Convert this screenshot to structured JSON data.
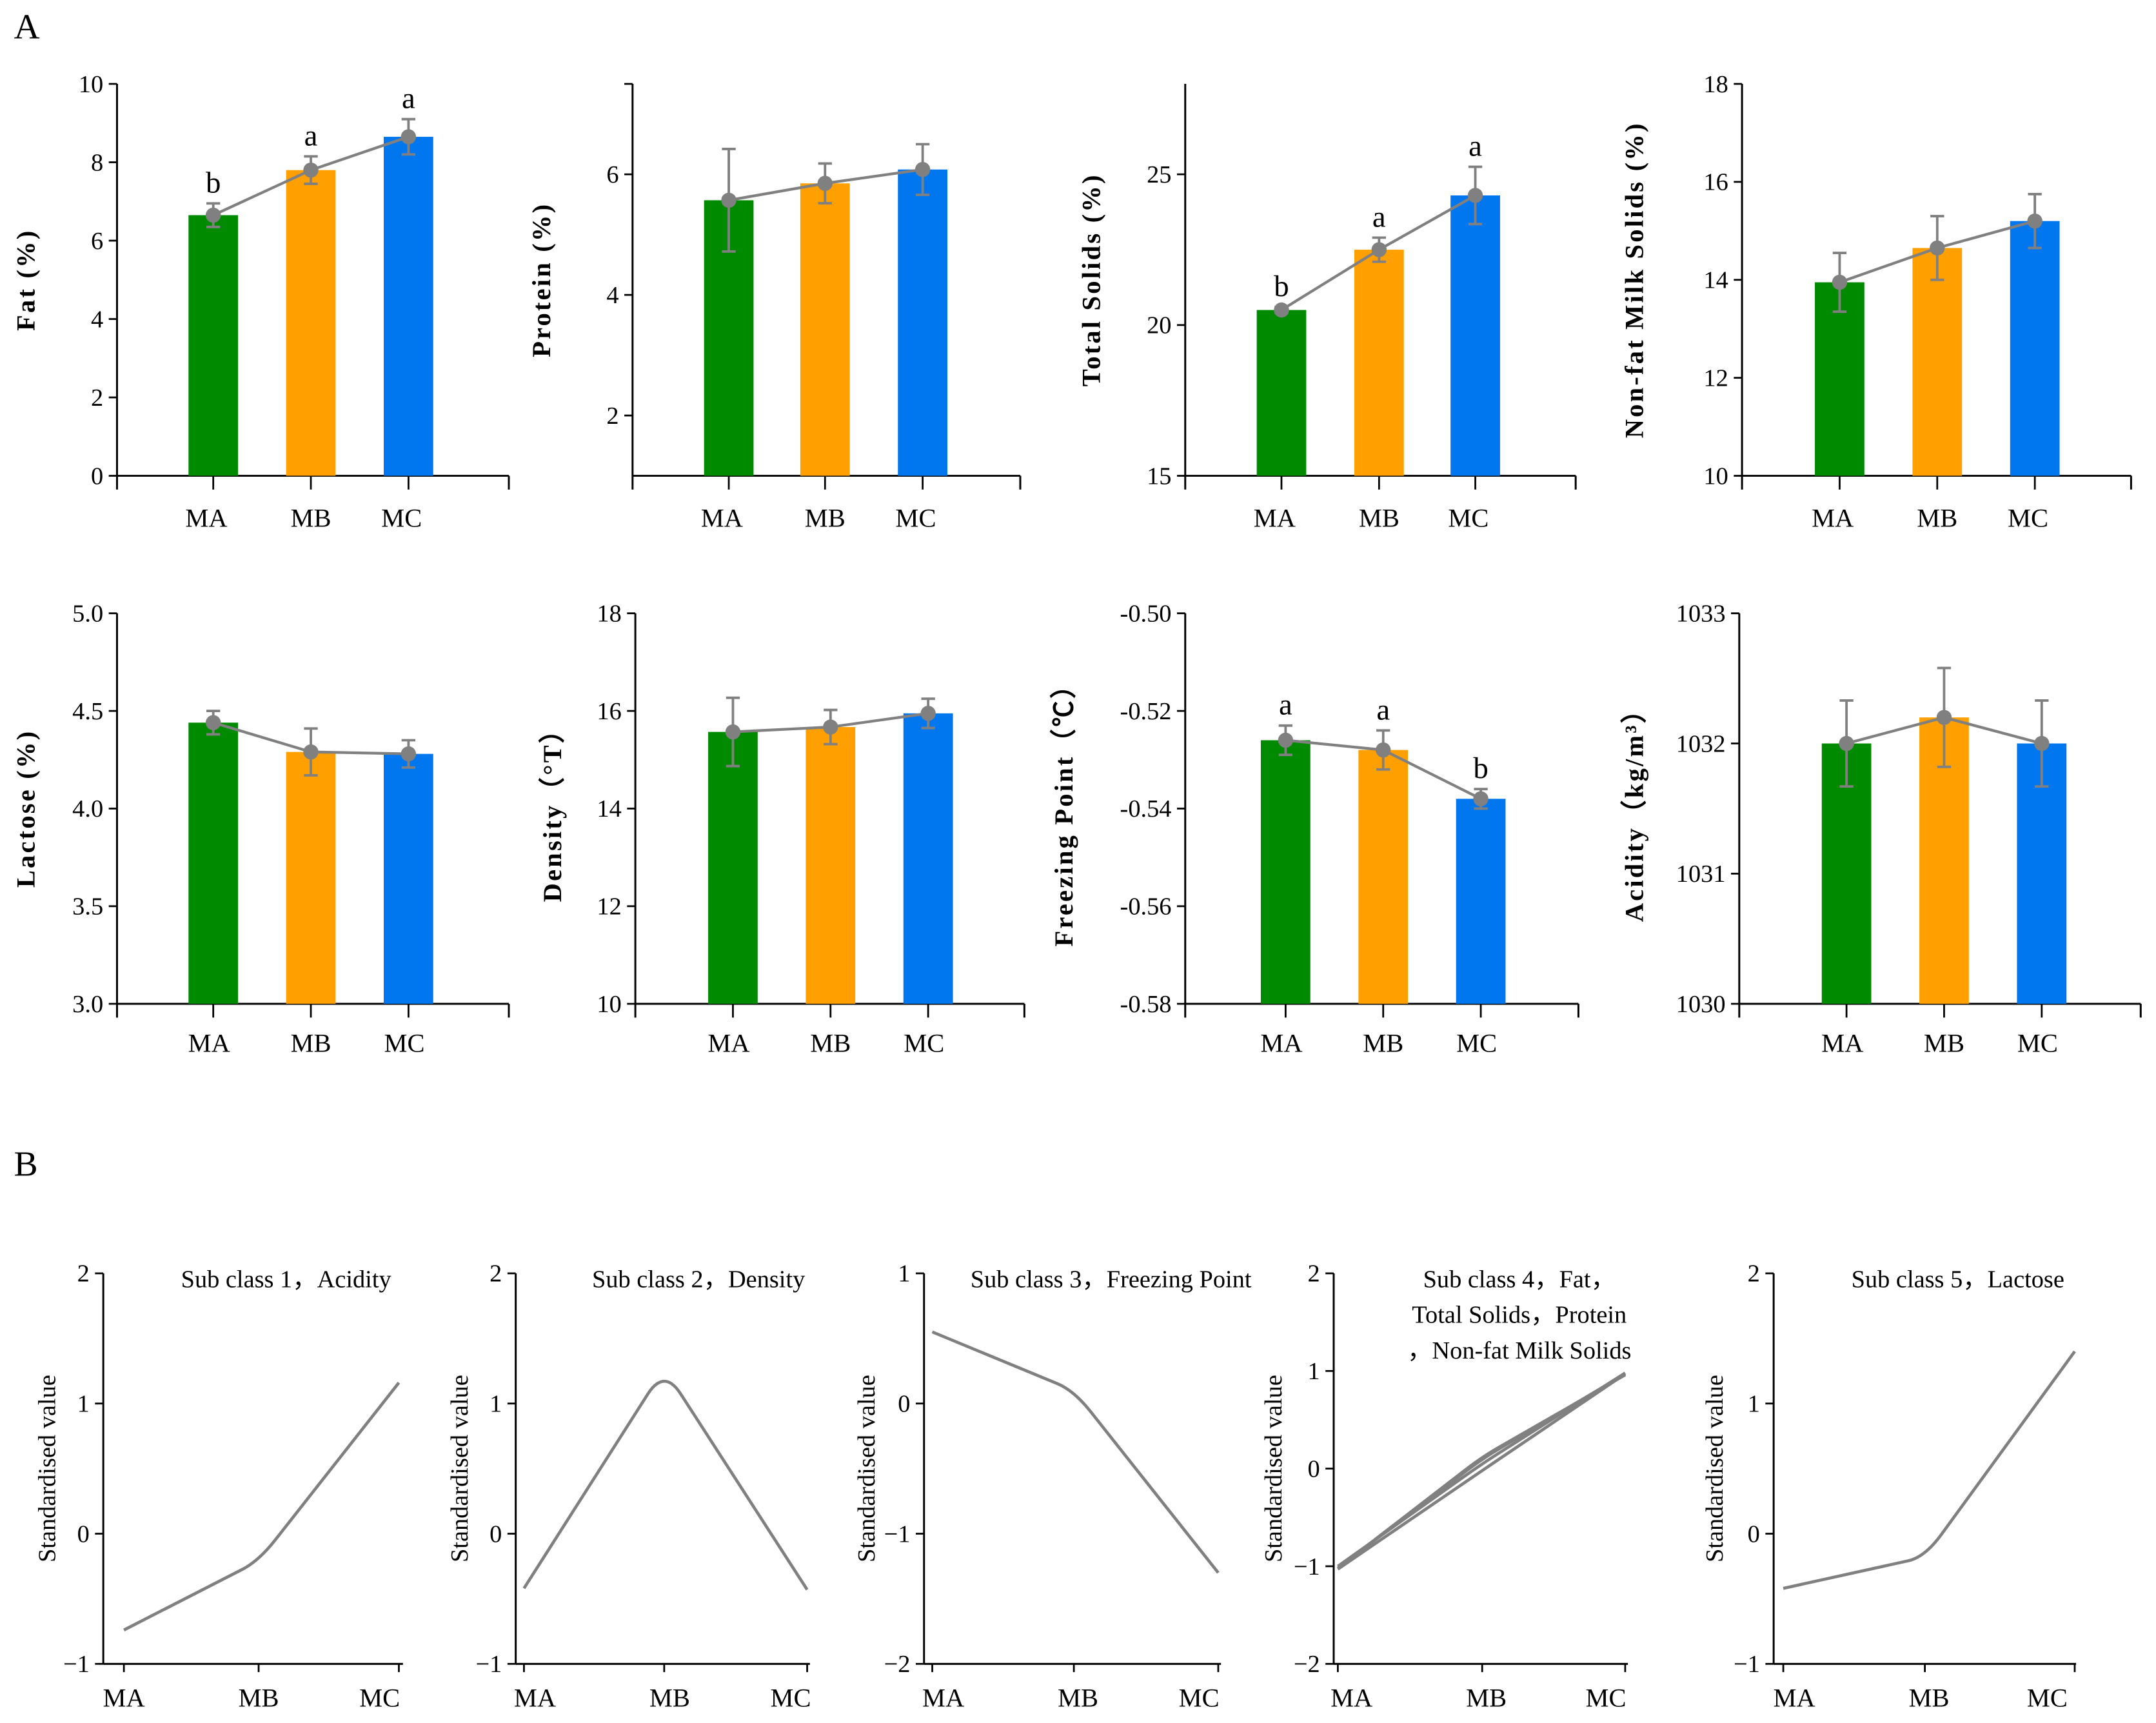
{
  "panel_labels": {
    "a": "A",
    "b": "B"
  },
  "colors": {
    "MA": "#008a00",
    "MB": "#ff9f00",
    "MC": "#0077ee",
    "line": "#808080",
    "axis": "#000000"
  },
  "chart_data": [
    {
      "type": "bar",
      "ylabel": "Fat (%)",
      "categories": [
        "MA",
        "MB",
        "MC"
      ],
      "values": [
        6.65,
        7.8,
        8.65
      ],
      "errors": [
        0.3,
        0.35,
        0.45
      ],
      "letters": [
        "b",
        "a",
        "a"
      ],
      "ylim": [
        0,
        10
      ],
      "yticks": [
        "0",
        "2",
        "4",
        "6",
        "8",
        "10"
      ]
    },
    {
      "type": "bar",
      "ylabel": "Protein (%)",
      "categories": [
        "MA",
        "MB",
        "MC"
      ],
      "values": [
        5.57,
        5.85,
        6.08
      ],
      "errors": [
        0.85,
        0.33,
        0.42
      ],
      "letters": [
        "",
        "",
        ""
      ],
      "ylim": [
        1,
        7.5
      ],
      "yticks": [
        "2",
        "4",
        "6"
      ]
    },
    {
      "type": "bar",
      "ylabel": "Total Solids (%)",
      "categories": [
        "MA",
        "MB",
        "MC"
      ],
      "values": [
        20.5,
        22.5,
        24.3
      ],
      "errors": [
        0.1,
        0.4,
        0.95
      ],
      "letters": [
        "b",
        "a",
        "a"
      ],
      "ylim": [
        15,
        28
      ],
      "yticks": [
        "15",
        "20",
        "25"
      ]
    },
    {
      "type": "bar",
      "ylabel": "Non-fat Milk Solids (%)",
      "categories": [
        "MA",
        "MB",
        "MC"
      ],
      "values": [
        13.95,
        14.65,
        15.2
      ],
      "errors": [
        0.6,
        0.65,
        0.55
      ],
      "letters": [
        "",
        "",
        ""
      ],
      "ylim": [
        10,
        18
      ],
      "yticks": [
        "10",
        "12",
        "14",
        "16",
        "18"
      ]
    },
    {
      "type": "bar",
      "ylabel": "Lactose (%)",
      "categories": [
        "MA",
        "MB",
        "MC"
      ],
      "values": [
        4.44,
        4.29,
        4.28
      ],
      "errors": [
        0.06,
        0.12,
        0.07
      ],
      "letters": [
        "",
        "",
        ""
      ],
      "ylim": [
        3,
        5
      ],
      "yticks": [
        "3.0",
        "3.5",
        "4.0",
        "4.5",
        "5.0"
      ]
    },
    {
      "type": "bar",
      "ylabel": "Density（°T）",
      "categories": [
        "MA",
        "MB",
        "MC"
      ],
      "values": [
        15.57,
        15.67,
        15.95
      ],
      "errors": [
        0.7,
        0.35,
        0.3
      ],
      "letters": [
        "",
        "",
        ""
      ],
      "ylim": [
        10,
        18
      ],
      "yticks": [
        "10",
        "12",
        "14",
        "16",
        "18"
      ]
    },
    {
      "type": "bar",
      "ylabel": "Freezing Point（℃）",
      "categories": [
        "MA",
        "MB",
        "MC"
      ],
      "values": [
        -0.526,
        -0.528,
        -0.538
      ],
      "errors": [
        0.003,
        0.004,
        0.002
      ],
      "letters": [
        "a",
        "a",
        "b"
      ],
      "ylim": [
        -0.58,
        -0.5
      ],
      "yticks": [
        "-0.58",
        "-0.56",
        "-0.54",
        "-0.52",
        "-0.50"
      ]
    },
    {
      "type": "bar",
      "ylabel": "Acidity（kg/m³）",
      "categories": [
        "MA",
        "MB",
        "MC"
      ],
      "values": [
        1032.0,
        1032.2,
        1032.0
      ],
      "errors": [
        0.33,
        0.38,
        0.33
      ],
      "letters": [
        "",
        "",
        ""
      ],
      "ylim": [
        1030,
        1033
      ],
      "yticks": [
        "1030",
        "1031",
        "1032",
        "1033"
      ]
    },
    {
      "type": "line",
      "ylabel": "Standardised value",
      "title": [
        "Sub class 1，Acidity"
      ],
      "categories": [
        "MA",
        "MB",
        "MC"
      ],
      "series": [
        {
          "name": "Acidity",
          "values": [
            -0.74,
            -0.21,
            1.16
          ]
        }
      ],
      "ylim": [
        -1,
        2
      ],
      "yticks": [
        "−1",
        "0",
        "1",
        "2"
      ]
    },
    {
      "type": "line",
      "ylabel": "Standardised value",
      "title": [
        "Sub class 2，Density"
      ],
      "categories": [
        "MA",
        "MB",
        "MC"
      ],
      "series": [
        {
          "name": "Density",
          "values": [
            -0.42,
            1.27,
            -0.43
          ]
        }
      ],
      "ylim": [
        -1,
        2
      ],
      "yticks": [
        "−1",
        "0",
        "1",
        "2"
      ]
    },
    {
      "type": "line",
      "ylabel": "Standardised value",
      "title": [
        "Sub class 3，Freezing Point"
      ],
      "categories": [
        "MA",
        "MB",
        "MC"
      ],
      "series": [
        {
          "name": "Freezing Point",
          "values": [
            0.55,
            0.1,
            -1.3
          ]
        }
      ],
      "ylim": [
        -2,
        1
      ],
      "yticks": [
        "−2",
        "−1",
        "0",
        "1"
      ]
    },
    {
      "type": "line",
      "ylabel": "Standardised value",
      "title": [
        "Sub class 4，Fat，",
        "Total Solids，Protein",
        "，Non-fat Milk Solids"
      ],
      "categories": [
        "MA",
        "MB",
        "MC"
      ],
      "series": [
        {
          "name": "Fat",
          "values": [
            -1.02,
            0.1,
            0.97
          ]
        },
        {
          "name": "Total Solids",
          "values": [
            -1.02,
            0.12,
            0.96
          ]
        },
        {
          "name": "Protein",
          "values": [
            -1.03,
            -0.02,
            0.97
          ]
        },
        {
          "name": "Non-fat Milk Solids",
          "values": [
            -1.0,
            0.05,
            0.98
          ]
        }
      ],
      "ylim": [
        -2,
        2
      ],
      "yticks": [
        "−2",
        "−1",
        "0",
        "1",
        "2"
      ]
    },
    {
      "type": "line",
      "ylabel": "Standardised value",
      "title": [
        "Sub class 5，Lactose"
      ],
      "categories": [
        "MA",
        "MB",
        "MC"
      ],
      "series": [
        {
          "name": "Lactose",
          "values": [
            -0.42,
            -0.18,
            1.4
          ]
        }
      ],
      "ylim": [
        -1,
        2
      ],
      "yticks": [
        "−1",
        "0",
        "1",
        "2"
      ]
    }
  ]
}
